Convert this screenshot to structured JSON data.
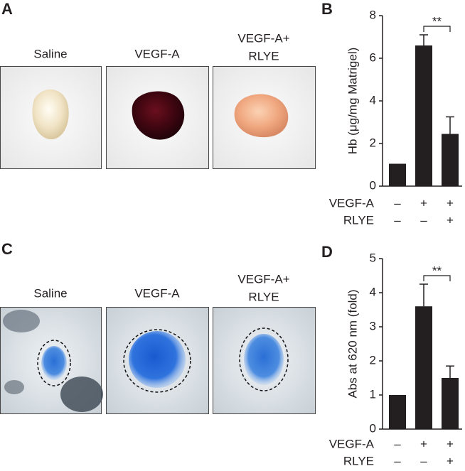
{
  "panels": [
    {
      "letter": "A",
      "labels": [
        [
          "Saline"
        ],
        [
          "VEGF-A"
        ],
        [
          "VEGF-A+",
          "RLYE"
        ]
      ]
    },
    {
      "letter": "C",
      "labels": [
        [
          "Saline"
        ],
        [
          "VEGF-A"
        ],
        [
          "VEGF-A+",
          "RLYE"
        ]
      ]
    }
  ],
  "chart_data": [
    {
      "type": "bar",
      "panel": "B",
      "y_label": "Hb (μg/mg Matrigel)",
      "values": [
        1.05,
        6.6,
        2.45
      ],
      "errors": [
        null,
        0.5,
        0.8
      ],
      "color": "#231f20",
      "ylim": [
        0,
        8
      ],
      "yticks": [
        0,
        2,
        4,
        6,
        8
      ],
      "conditions": [
        {
          "name": "VEGF-A",
          "signs": [
            "–",
            "+",
            "+"
          ]
        },
        {
          "name": "RLYE",
          "signs": [
            "–",
            "–",
            "+"
          ]
        }
      ],
      "significance": {
        "label": "**",
        "from": 1,
        "to": 2
      }
    },
    {
      "type": "bar",
      "panel": "D",
      "y_label": "Abs at 620 nm (fold)",
      "values": [
        1.0,
        3.6,
        1.5
      ],
      "errors": [
        null,
        0.65,
        0.35
      ],
      "color": "#231f20",
      "ylim": [
        0,
        5
      ],
      "yticks": [
        0,
        1,
        2,
        3,
        4,
        5
      ],
      "conditions": [
        {
          "name": "VEGF-A",
          "signs": [
            "–",
            "+",
            "+"
          ]
        },
        {
          "name": "RLYE",
          "signs": [
            "–",
            "–",
            "+"
          ]
        }
      ],
      "significance": {
        "label": "**",
        "from": 1,
        "to": 2
      }
    }
  ]
}
